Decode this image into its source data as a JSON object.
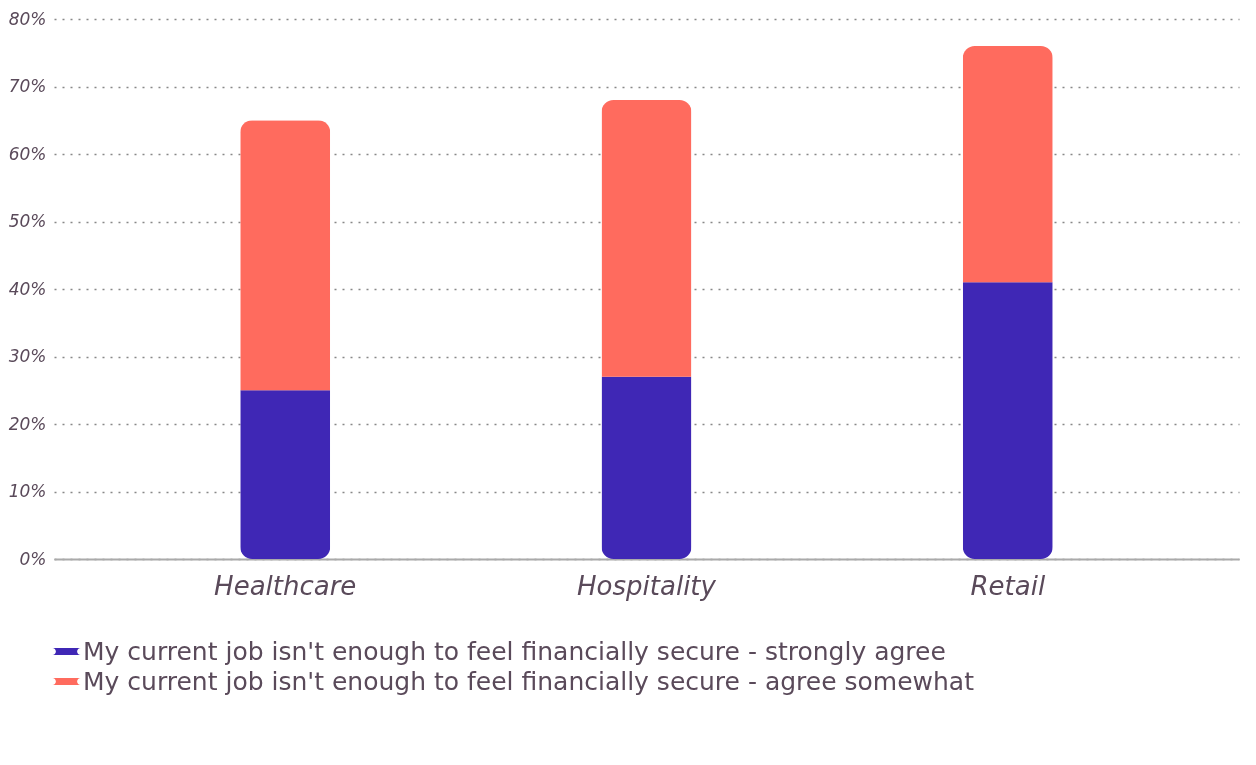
{
  "chart_data": {
    "type": "bar",
    "stacked": true,
    "categories": [
      "Healthcare",
      "Hospitality",
      "Retail"
    ],
    "series": [
      {
        "name": "My current job isn't enough to feel financially secure - strongly agree",
        "color": "#3f27b5",
        "values": [
          25,
          27,
          41
        ]
      },
      {
        "name": "My current job isn't enough to feel financially secure - agree somewhat",
        "color": "#ff6b5e",
        "values": [
          40,
          41,
          35
        ]
      }
    ],
    "ylim": [
      0,
      80
    ],
    "yticks": [
      {
        "value": 0,
        "label": "0%"
      },
      {
        "value": 10,
        "label": "10%"
      },
      {
        "value": 20,
        "label": "20%"
      },
      {
        "value": 30,
        "label": "30%"
      },
      {
        "value": 40,
        "label": "40%"
      },
      {
        "value": 50,
        "label": "50%"
      },
      {
        "value": 60,
        "label": "60%"
      },
      {
        "value": 70,
        "label": "70%"
      },
      {
        "value": 80,
        "label": "80%"
      }
    ],
    "grid": "y",
    "legend": "bottom left"
  }
}
